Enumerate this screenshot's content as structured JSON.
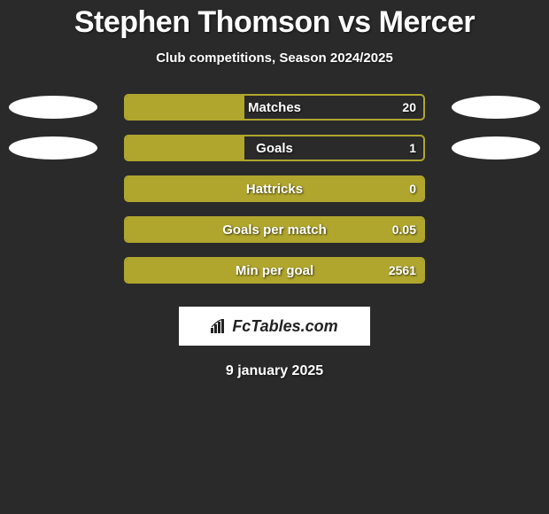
{
  "title": {
    "player1": "Stephen Thomson",
    "vs": "vs",
    "player2": "Mercer",
    "player1_color": "#ffffff",
    "player2_color": "#ffffff"
  },
  "subtitle": "Club competitions, Season 2024/2025",
  "colors": {
    "background": "#2a2a2a",
    "ellipse_left": "#ffffff",
    "ellipse_right": "#ffffff",
    "bar_border": "#b0a62e",
    "bar_fill": "#b0a62e",
    "text": "#ffffff"
  },
  "chart": {
    "track_width": 340,
    "rows": [
      {
        "label": "Matches",
        "value": "20",
        "fill_pct": 40,
        "show_ellipses": true
      },
      {
        "label": "Goals",
        "value": "1",
        "fill_pct": 40,
        "show_ellipses": true
      },
      {
        "label": "Hattricks",
        "value": "0",
        "fill_pct": 100,
        "show_ellipses": false
      },
      {
        "label": "Goals per match",
        "value": "0.05",
        "fill_pct": 100,
        "show_ellipses": false
      },
      {
        "label": "Min per goal",
        "value": "2561",
        "fill_pct": 100,
        "show_ellipses": false
      }
    ]
  },
  "logo": {
    "icon": "bars-icon",
    "text": "FcTables.com"
  },
  "date": "9 january 2025"
}
